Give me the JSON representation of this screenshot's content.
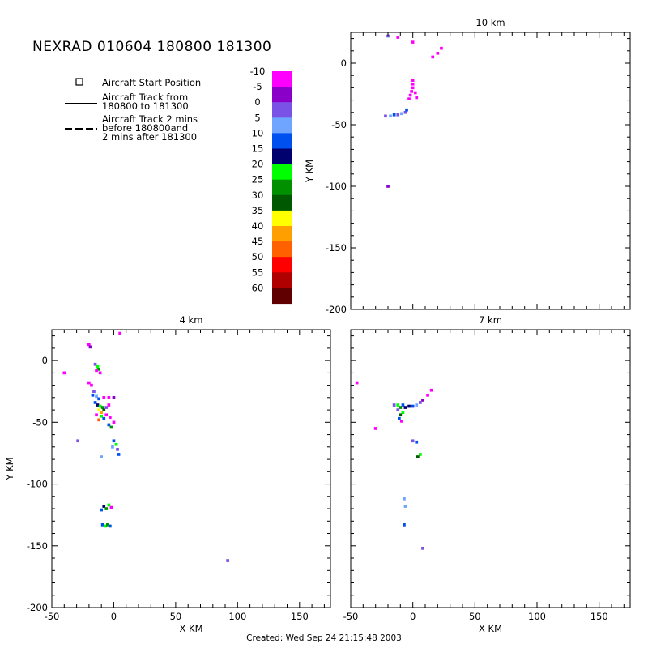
{
  "title": "NEXRAD 010604 180800 181300",
  "footer": "Created: Wed Sep 24 21:15:48 2003",
  "legend": {
    "start_label": "Aircraft Start Position",
    "track_label_line1": "Aircraft Track from",
    "track_label_line2": "180800 to 181300",
    "track2_label_line1": "Aircraft Track 2 mins",
    "track2_label_line2": "before 180800and",
    "track2_label_line3": "2 mins after 181300"
  },
  "colorbar": {
    "labels": [
      "-10",
      "-5",
      "0",
      "5",
      "10",
      "15",
      "20",
      "25",
      "30",
      "35",
      "40",
      "45",
      "50",
      "55",
      "60"
    ],
    "colors": [
      "#ff00ff",
      "#8a00c8",
      "#7b52e6",
      "#6fa5ff",
      "#0050f0",
      "#00006e",
      "#00ff00",
      "#009000",
      "#005800",
      "#ffff00",
      "#ffa000",
      "#ff6000",
      "#ff0000",
      "#b00000",
      "#600000"
    ]
  },
  "chart_data": [
    {
      "type": "heatmap",
      "title": "10 km",
      "xlabel": "",
      "ylabel": "Y KM",
      "xlim": [
        -50,
        175
      ],
      "ylim": [
        -200,
        25
      ],
      "xticks": [],
      "yticks": [
        "0",
        "-50",
        "-100",
        "-150",
        "-200"
      ],
      "cells": [
        [
          -20,
          22,
          "#7b52e6"
        ],
        [
          -12,
          21,
          "#ff00ff"
        ],
        [
          0,
          17,
          "#ff00ff"
        ],
        [
          23,
          12,
          "#ff00ff"
        ],
        [
          20,
          8,
          "#ff00ff"
        ],
        [
          16,
          5,
          "#ff00ff"
        ],
        [
          0,
          -14,
          "#ff00ff"
        ],
        [
          0,
          -17,
          "#ff00ff"
        ],
        [
          0,
          -20,
          "#ff00ff"
        ],
        [
          -1,
          -23,
          "#ff00ff"
        ],
        [
          -2,
          -26,
          "#ff00ff"
        ],
        [
          -3,
          -29,
          "#ff00ff"
        ],
        [
          2,
          -24,
          "#ff00ff"
        ],
        [
          3,
          -28,
          "#ff00ff"
        ],
        [
          -22,
          -43,
          "#7b52e6"
        ],
        [
          -18,
          -43,
          "#6fa5ff"
        ],
        [
          -15,
          -42,
          "#0050f0"
        ],
        [
          -12,
          -42,
          "#7b52e6"
        ],
        [
          -9,
          -41,
          "#6fa5ff"
        ],
        [
          -6,
          -40,
          "#7b52e6"
        ],
        [
          -5,
          -38,
          "#0050f0"
        ],
        [
          -20,
          -100,
          "#8a00c8"
        ]
      ]
    },
    {
      "type": "heatmap",
      "title": "4 km",
      "xlabel": "X KM",
      "ylabel": "Y KM",
      "xlim": [
        -50,
        175
      ],
      "ylim": [
        -200,
        25
      ],
      "xticks": [
        "-50",
        "0",
        "50",
        "100",
        "150"
      ],
      "yticks": [
        "0",
        "-50",
        "-100",
        "-150",
        "-200"
      ],
      "cells": [
        [
          -20,
          13,
          "#ff00ff"
        ],
        [
          -19,
          11,
          "#8a00c8"
        ],
        [
          -15,
          -3,
          "#7b52e6"
        ],
        [
          -13,
          -5,
          "#00ff00"
        ],
        [
          -12,
          -7,
          "#009000"
        ],
        [
          -14,
          -8,
          "#ff00ff"
        ],
        [
          -11,
          -10,
          "#ff00ff"
        ],
        [
          -20,
          -18,
          "#ff00ff"
        ],
        [
          -18,
          -20,
          "#ff00ff"
        ],
        [
          -16,
          -25,
          "#7b52e6"
        ],
        [
          -17,
          -28,
          "#0050f0"
        ],
        [
          -14,
          -29,
          "#6fa5ff"
        ],
        [
          -12,
          -31,
          "#0050f0"
        ],
        [
          -8,
          -30,
          "#ff00ff"
        ],
        [
          -4,
          -30,
          "#ff00ff"
        ],
        [
          0,
          -30,
          "#8a00c8"
        ],
        [
          -15,
          -34,
          "#0050f0"
        ],
        [
          -13,
          -36,
          "#00006e"
        ],
        [
          -11,
          -37,
          "#00ff00"
        ],
        [
          -9,
          -38,
          "#009000"
        ],
        [
          -12,
          -40,
          "#ffff00"
        ],
        [
          -10,
          -42,
          "#ffa000"
        ],
        [
          -8,
          -40,
          "#005800"
        ],
        [
          -6,
          -38,
          "#7b52e6"
        ],
        [
          -4,
          -36,
          "#ff00ff"
        ],
        [
          -10,
          -45,
          "#00ff00"
        ],
        [
          -8,
          -47,
          "#0050f0"
        ],
        [
          -6,
          -44,
          "#ff00ff"
        ],
        [
          -3,
          -46,
          "#ff00ff"
        ],
        [
          -4,
          -52,
          "#0050f0"
        ],
        [
          -2,
          -54,
          "#009000"
        ],
        [
          0,
          -50,
          "#ff00ff"
        ],
        [
          -12,
          -48,
          "#ff6000"
        ],
        [
          -14,
          -44,
          "#ff00ff"
        ],
        [
          0,
          -65,
          "#0050f0"
        ],
        [
          2,
          -68,
          "#00ff00"
        ],
        [
          3,
          -72,
          "#7b52e6"
        ],
        [
          4,
          -76,
          "#0050f0"
        ],
        [
          -1,
          -70,
          "#6fa5ff"
        ],
        [
          -10,
          -78,
          "#6fa5ff"
        ],
        [
          -29,
          -65,
          "#7b52e6"
        ],
        [
          -40,
          -10,
          "#ff00ff"
        ],
        [
          5,
          22,
          "#ff00ff"
        ],
        [
          92,
          -162,
          "#7b52e6"
        ],
        [
          -8,
          -118,
          "#00006e"
        ],
        [
          -6,
          -120,
          "#009000"
        ],
        [
          -10,
          -121,
          "#0050f0"
        ],
        [
          -4,
          -117,
          "#00ff00"
        ],
        [
          -2,
          -119,
          "#ff00ff"
        ],
        [
          -9,
          -133,
          "#0050f0"
        ],
        [
          -7,
          -134,
          "#00ff00"
        ],
        [
          -5,
          -133,
          "#009000"
        ],
        [
          -3,
          -134,
          "#0050f0"
        ]
      ]
    },
    {
      "type": "heatmap",
      "title": "7 km",
      "xlabel": "X KM",
      "ylabel": "",
      "xlim": [
        -50,
        175
      ],
      "ylim": [
        -200,
        25
      ],
      "xticks": [
        "-50",
        "0",
        "50",
        "100",
        "150"
      ],
      "yticks": [],
      "cells": [
        [
          -45,
          -18,
          "#ff00ff"
        ],
        [
          -30,
          -55,
          "#ff00ff"
        ],
        [
          15,
          -24,
          "#ff00ff"
        ],
        [
          12,
          -28,
          "#ff00ff"
        ],
        [
          8,
          -32,
          "#8a00c8"
        ],
        [
          -15,
          -36,
          "#7b52e6"
        ],
        [
          -12,
          -36,
          "#00ff00"
        ],
        [
          -10,
          -38,
          "#009000"
        ],
        [
          -8,
          -36,
          "#0050f0"
        ],
        [
          -6,
          -38,
          "#00006e"
        ],
        [
          -3,
          -37,
          "#00006e"
        ],
        [
          0,
          -37,
          "#0050f0"
        ],
        [
          3,
          -36,
          "#6fa5ff"
        ],
        [
          6,
          -34,
          "#7b52e6"
        ],
        [
          -8,
          -42,
          "#00ff00"
        ],
        [
          -10,
          -44,
          "#005800"
        ],
        [
          -12,
          -40,
          "#7b52e6"
        ],
        [
          -11,
          -47,
          "#0050f0"
        ],
        [
          -9,
          -49,
          "#ff00ff"
        ],
        [
          0,
          -65,
          "#7b52e6"
        ],
        [
          3,
          -66,
          "#0050f0"
        ],
        [
          6,
          -76,
          "#00ff00"
        ],
        [
          4,
          -78,
          "#005800"
        ],
        [
          -7,
          -112,
          "#6fa5ff"
        ],
        [
          -6,
          -118,
          "#6fa5ff"
        ],
        [
          -7,
          -133,
          "#0050f0"
        ],
        [
          8,
          -152,
          "#7b52e6"
        ]
      ]
    }
  ]
}
